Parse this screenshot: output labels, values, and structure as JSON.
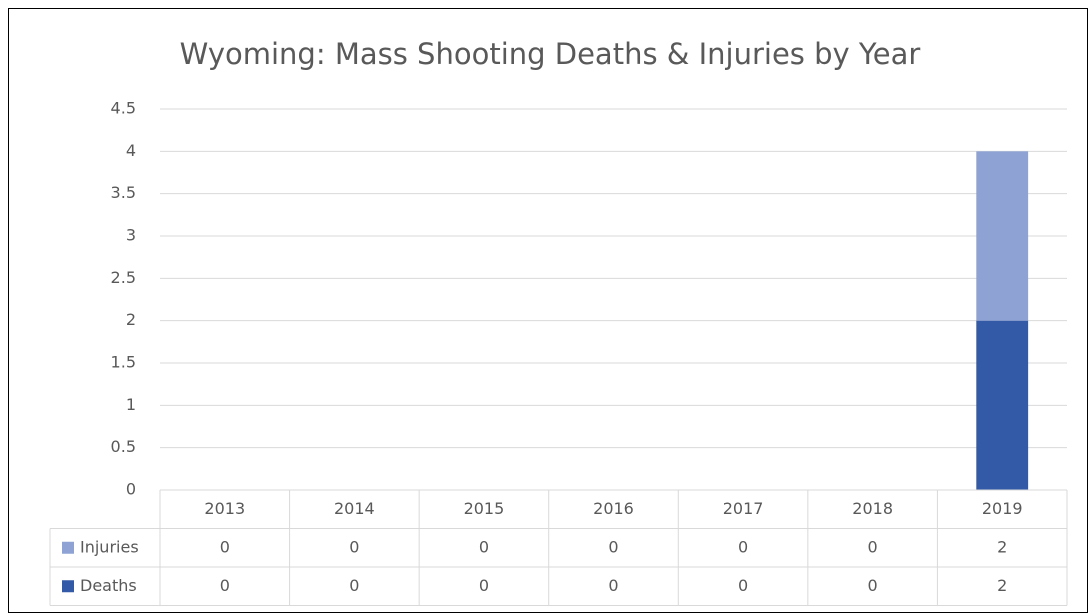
{
  "chart_data": {
    "type": "bar",
    "stacked": true,
    "title": "Wyoming: Mass Shooting Deaths & Injuries by Year",
    "categories": [
      "2013",
      "2014",
      "2015",
      "2016",
      "2017",
      "2018",
      "2019"
    ],
    "series": [
      {
        "name": "Injuries",
        "color": "#8ea2d4",
        "values": [
          0,
          0,
          0,
          0,
          0,
          0,
          2
        ]
      },
      {
        "name": "Deaths",
        "color": "#335aa6",
        "values": [
          0,
          0,
          0,
          0,
          0,
          0,
          2
        ]
      }
    ],
    "ylim": [
      0,
      4.5
    ],
    "yticks": [
      0,
      0.5,
      1,
      1.5,
      2,
      2.5,
      3,
      3.5,
      4,
      4.5
    ],
    "grid": true,
    "data_table": true
  }
}
